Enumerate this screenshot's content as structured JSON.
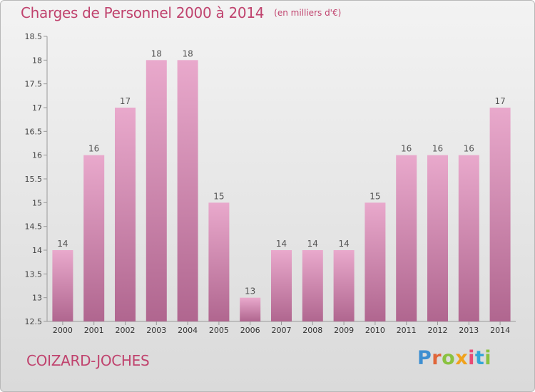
{
  "header": {
    "title": "Charges de Personnel 2000 à 2014",
    "unit": "(en milliers d'€)"
  },
  "footer": {
    "commune": "COIZARD-JOCHES",
    "logo": "Proxiti"
  },
  "colors": {
    "accent": "#c0436e",
    "bar_top": "#e9a9cc",
    "bar_bottom": "#b0668f"
  },
  "chart_data": {
    "type": "bar",
    "title": "Charges de Personnel 2000 à 2014",
    "subtitle": "(en milliers d'€)",
    "categories": [
      "2000",
      "2001",
      "2002",
      "2003",
      "2004",
      "2005",
      "2006",
      "2007",
      "2008",
      "2009",
      "2010",
      "2011",
      "2012",
      "2013",
      "2014"
    ],
    "values": [
      14,
      16,
      17,
      18,
      18,
      15,
      13,
      14,
      14,
      14,
      15,
      16,
      16,
      16,
      17
    ],
    "data_labels": [
      "14",
      "16",
      "17",
      "18",
      "18",
      "15",
      "13",
      "14",
      "14",
      "14",
      "15",
      "16",
      "16",
      "16",
      "17"
    ],
    "ylim": [
      12.5,
      18.5
    ],
    "yticks": [
      "12.5",
      "13",
      "13.5",
      "14",
      "14.5",
      "15",
      "15.5",
      "16",
      "16.5",
      "17",
      "17.5",
      "18",
      "18.5"
    ],
    "xlabel": "",
    "ylabel": "",
    "grid": false,
    "legend": "none"
  }
}
